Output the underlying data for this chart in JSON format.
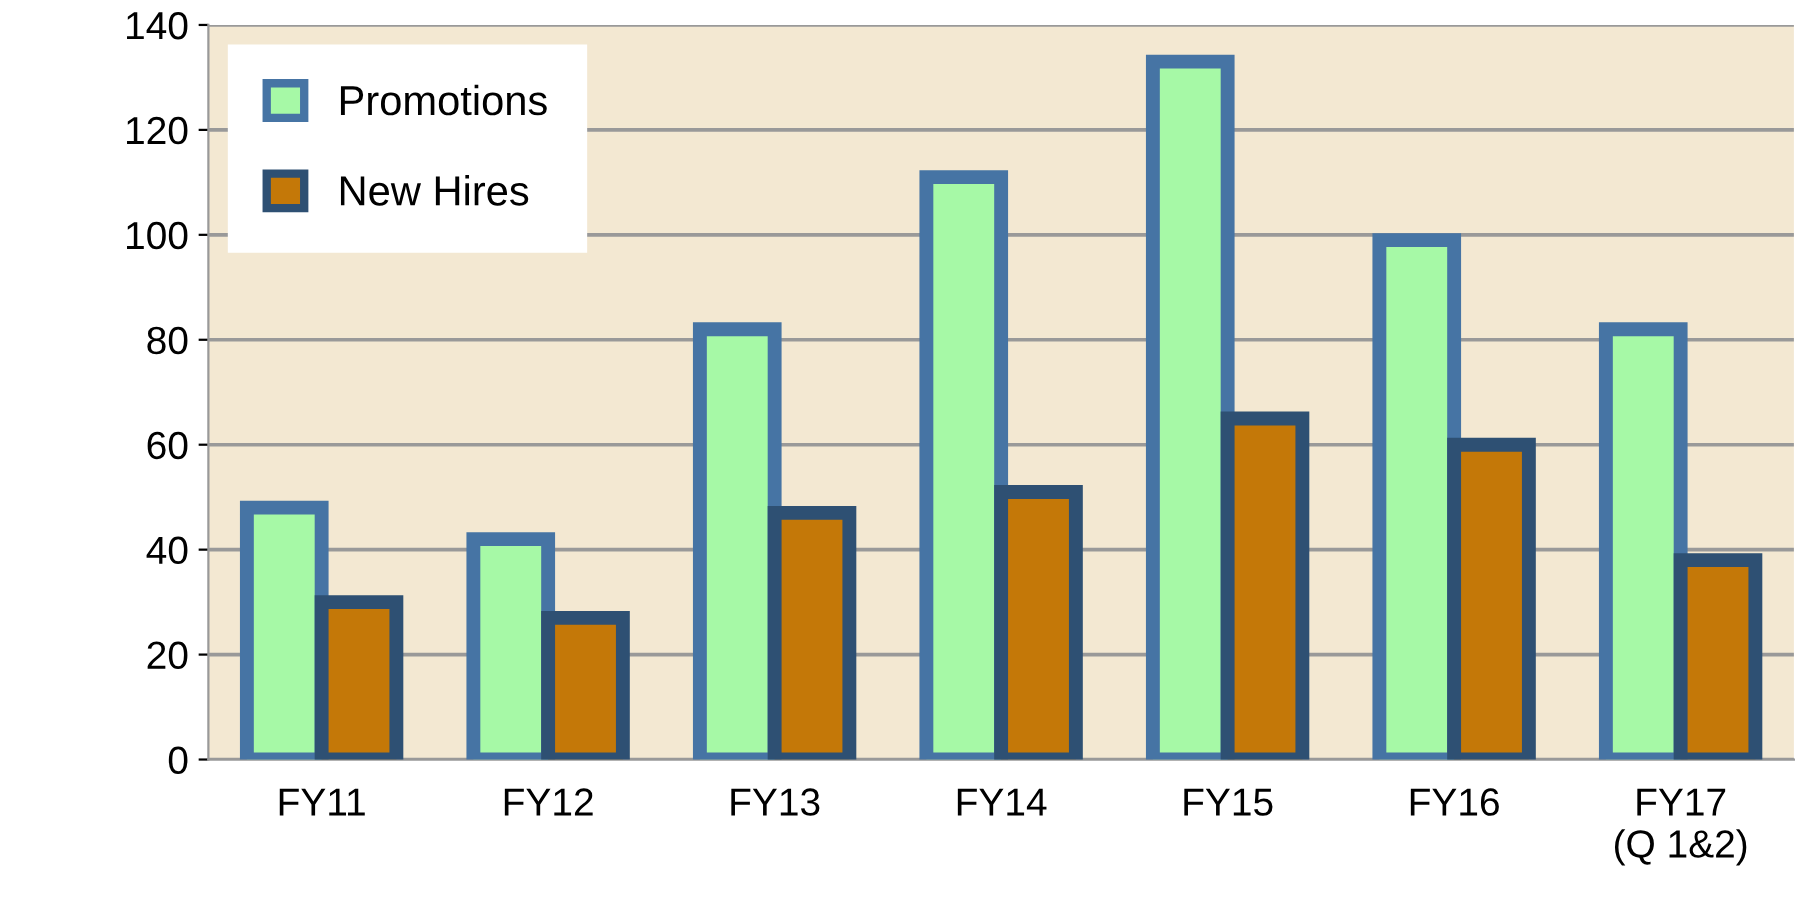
{
  "chart_data": {
    "type": "bar",
    "categories": [
      "FY11",
      "FY12",
      "FY13",
      "FY14",
      "FY15",
      "FY16",
      "FY17\n(Q 1&2)"
    ],
    "series": [
      {
        "name": "Promotions",
        "color": "#a6f9a6",
        "values": [
          48,
          42,
          82,
          111,
          133,
          99,
          82
        ]
      },
      {
        "name": "New Hires",
        "color": "#c47808",
        "values": [
          30,
          27,
          47,
          51,
          65,
          60,
          38
        ]
      }
    ],
    "ylim": [
      0,
      140
    ],
    "yticks": [
      0,
      20,
      40,
      60,
      80,
      100,
      120,
      140
    ],
    "grid": "y",
    "legend": "top left"
  }
}
